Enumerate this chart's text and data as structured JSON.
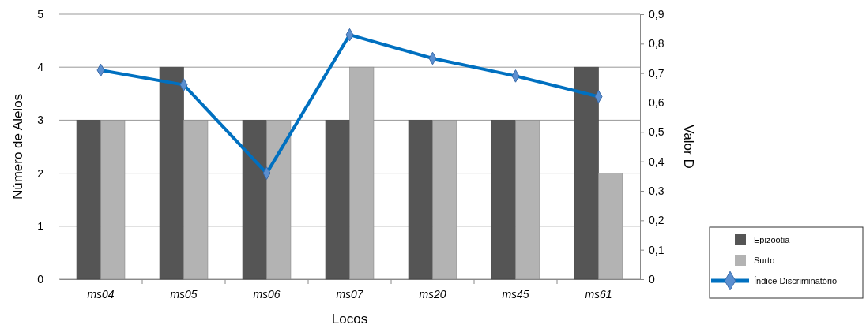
{
  "chart_data": {
    "type": "bar",
    "xlabel": "Locos",
    "ylabel": "Número de Alelos",
    "y2label": "Valor D",
    "categories": [
      "ms04",
      "ms05",
      "ms06",
      "ms07",
      "ms20",
      "ms45",
      "ms61"
    ],
    "series": [
      {
        "name": "Epizootia",
        "color": "#555555",
        "values": [
          3,
          4,
          3,
          3,
          3,
          3,
          4
        ]
      },
      {
        "name": "Surto",
        "color": "#b3b3b3",
        "values": [
          3,
          3,
          3,
          4,
          3,
          3,
          2
        ]
      },
      {
        "name": "Índice Discriminatório",
        "type": "line",
        "axis": "y2",
        "color": "#0070c0",
        "marker": "diamond",
        "values": [
          0.71,
          0.66,
          0.36,
          0.83,
          0.75,
          0.69,
          0.62
        ]
      }
    ],
    "ylim": [
      0,
      5
    ],
    "yticks": [
      0,
      1,
      2,
      3,
      4,
      5
    ],
    "y2lim": [
      0,
      0.9
    ],
    "y2ticks": [
      0,
      {
        "value": 0.1,
        "label": "0,1"
      },
      {
        "value": 0.2,
        "label": "0,2"
      },
      {
        "value": 0.3,
        "label": "0,3"
      },
      {
        "value": 0.4,
        "label": "0,4"
      },
      {
        "value": 0.5,
        "label": "0,5"
      },
      {
        "value": 0.6,
        "label": "0,6"
      },
      {
        "value": 0.7,
        "label": "0,7"
      },
      {
        "value": 0.8,
        "label": "0,8"
      },
      {
        "value": 0.9,
        "label": "0,9"
      }
    ],
    "grid": "y",
    "legend": "right"
  }
}
